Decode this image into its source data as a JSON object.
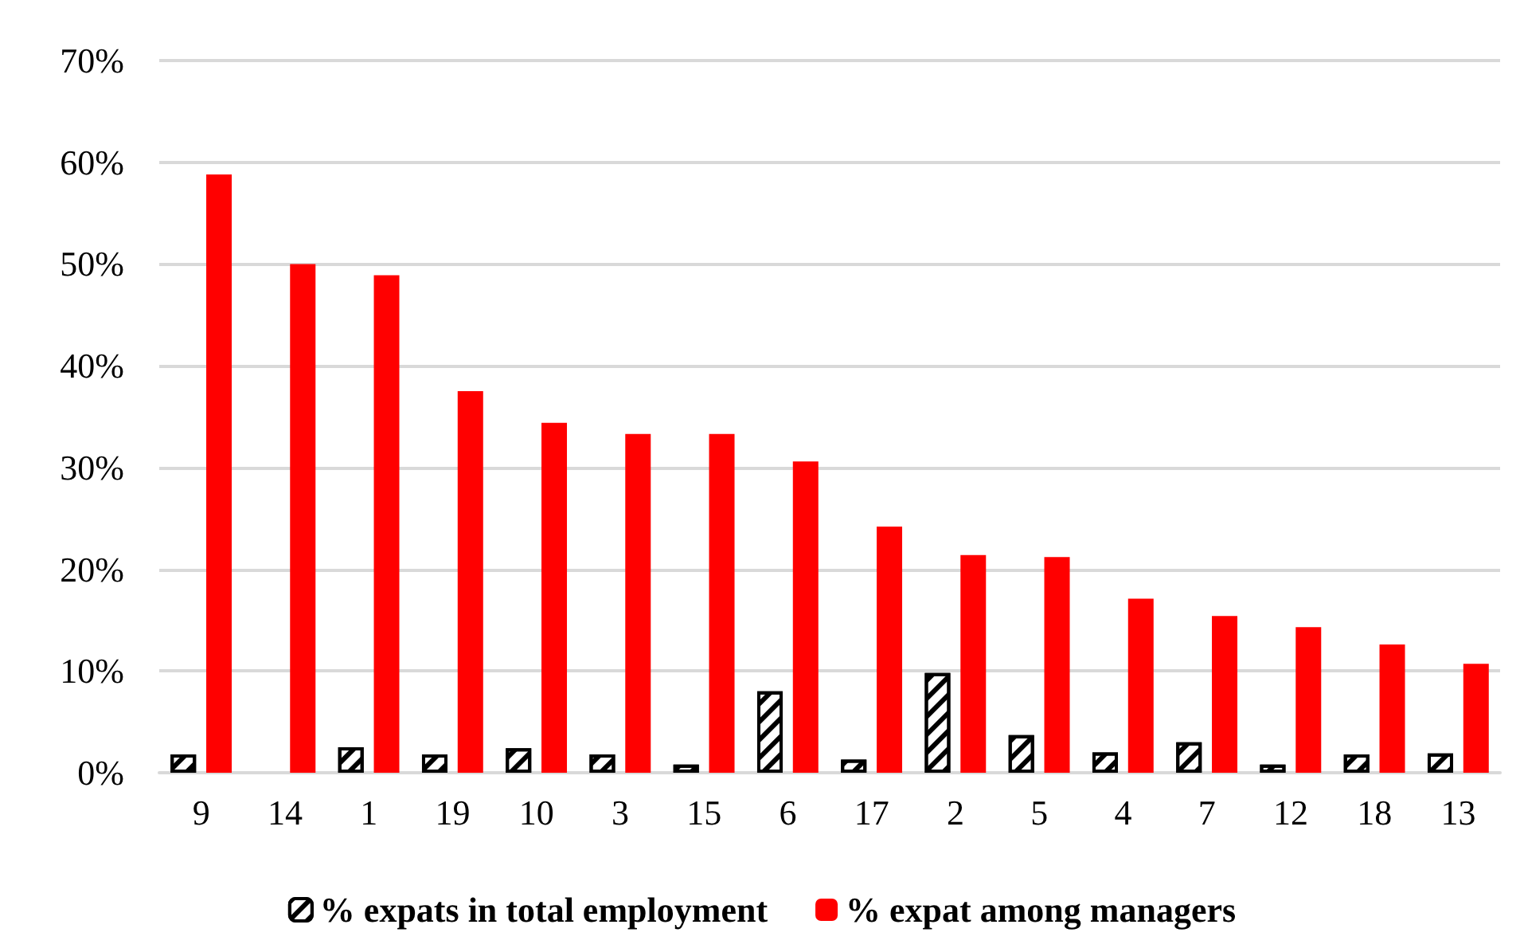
{
  "chart_data": {
    "type": "bar",
    "categories": [
      "9",
      "14",
      "1",
      "19",
      "10",
      "3",
      "15",
      "6",
      "17",
      "2",
      "5",
      "4",
      "7",
      "12",
      "18",
      "13"
    ],
    "series": [
      {
        "name": "% expats in total employment",
        "color": "#000000",
        "values": [
          1.8,
          null,
          2.5,
          1.8,
          2.4,
          1.8,
          0.8,
          8.0,
          1.3,
          9.8,
          3.7,
          2.0,
          3.0,
          0.8,
          1.8,
          1.9
        ]
      },
      {
        "name": "% expat among managers",
        "color": "#ff0000",
        "values": [
          58.8,
          50.0,
          48.9,
          37.5,
          34.4,
          33.3,
          33.3,
          30.6,
          24.2,
          21.4,
          21.2,
          17.1,
          15.4,
          14.3,
          12.6,
          10.7
        ]
      }
    ],
    "ylim": [
      0,
      70
    ],
    "yticks": [
      {
        "value": 0,
        "label": "0%"
      },
      {
        "value": 10,
        "label": "10%"
      },
      {
        "value": 20,
        "label": "20%"
      },
      {
        "value": 30,
        "label": "30%"
      },
      {
        "value": 40,
        "label": "40%"
      },
      {
        "value": 50,
        "label": "50%"
      },
      {
        "value": 60,
        "label": "60%"
      },
      {
        "value": 70,
        "label": "70%"
      }
    ],
    "grid": "y",
    "legend": "bottom"
  }
}
